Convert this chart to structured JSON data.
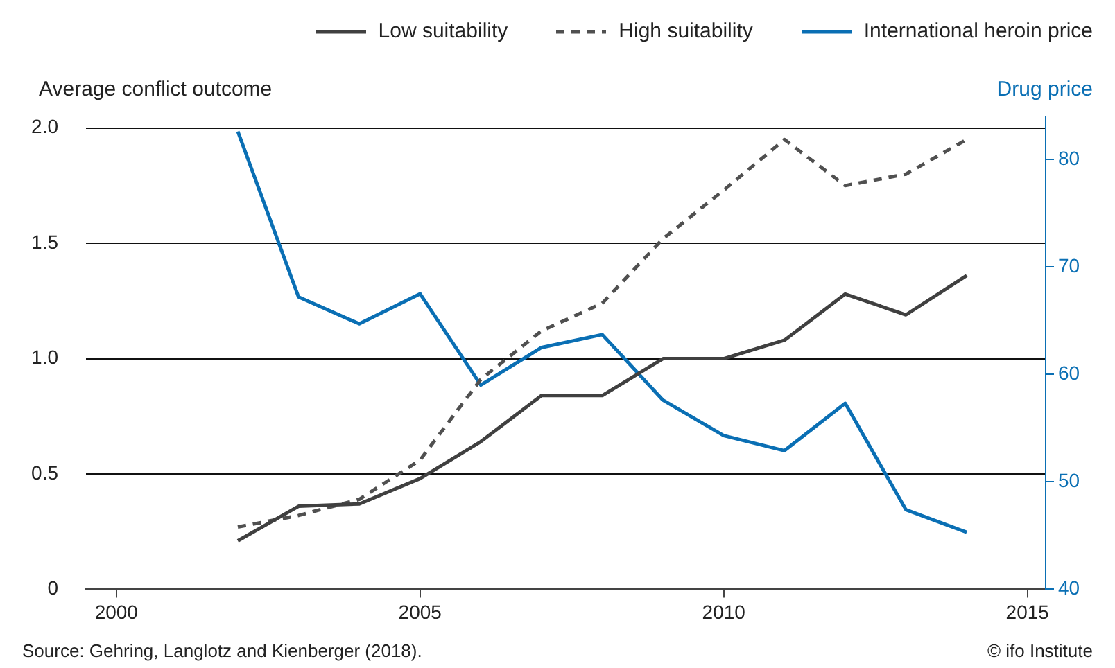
{
  "chart_data": {
    "type": "line",
    "ylabel": "Average conflict outcome",
    "y2label": "Drug price",
    "x": [
      2002,
      2003,
      2004,
      2005,
      2006,
      2007,
      2008,
      2009,
      2010,
      2011,
      2012,
      2013,
      2014
    ],
    "series": [
      {
        "name": "Low suitability",
        "color": "#404040",
        "line_style": "solid",
        "values": [
          0.21,
          0.36,
          0.37,
          0.48,
          0.64,
          0.84,
          0.84,
          1.0,
          1.0,
          1.08,
          1.28,
          1.19,
          1.36
        ]
      },
      {
        "name": "High suitability",
        "color": "#505050",
        "line_style": "dashed",
        "values": [
          0.27,
          0.32,
          0.39,
          0.56,
          0.91,
          1.12,
          1.24,
          1.52,
          1.73,
          1.95,
          1.75,
          1.8,
          1.95
        ]
      },
      {
        "name": "International heroin price",
        "color": "#0a6fb4",
        "line_style": "solid",
        "axis": "y2",
        "values": [
          82.6,
          67.2,
          64.7,
          67.5,
          59.0,
          62.5,
          63.7,
          57.6,
          54.3,
          52.9,
          57.3,
          47.4,
          45.3
        ]
      }
    ],
    "xlim": [
      1999.5,
      2015.3
    ],
    "xticks": [
      2000,
      2005,
      2010,
      2015
    ],
    "ylim": [
      0,
      2.05
    ],
    "yticks": [
      0,
      {
        "value": 0.5,
        "label": "0.5"
      },
      {
        "value": 1,
        "label": "1.0"
      },
      {
        "value": 1.5,
        "label": "1.5"
      },
      {
        "value": 2,
        "label": "2.0"
      }
    ],
    "y2lim": [
      40,
      84
    ],
    "y2ticks": [
      40,
      50,
      60,
      70,
      80
    ],
    "grid": "y",
    "legend": "top right",
    "marker": "none",
    "annotations": [
      "Source: Gehring, Langlotz and Kienberger (2018).",
      "© ifo Institute"
    ]
  }
}
